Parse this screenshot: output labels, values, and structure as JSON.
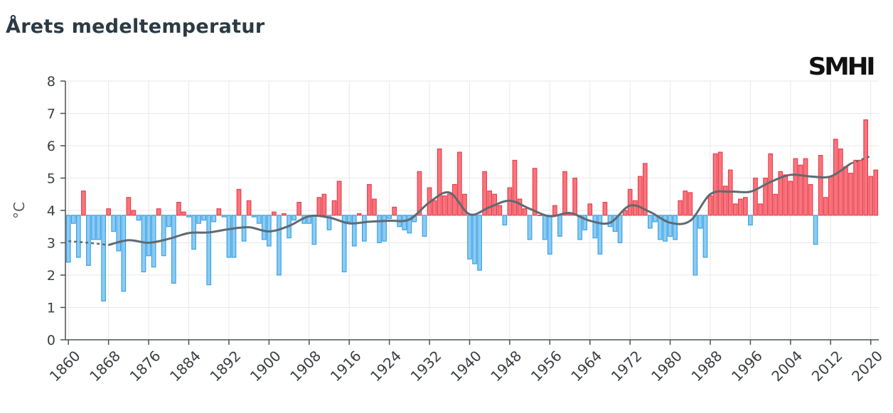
{
  "title": "Årets medeltemperatur",
  "logo_text": "SMHI",
  "colors": {
    "warm_fill": "#f9757e",
    "warm_stroke": "#e8404e",
    "cold_fill": "#8ccbf2",
    "cold_stroke": "#3aa2e6",
    "trend": "#5f6a70",
    "grid": "#e9e9e9"
  },
  "chart_data": {
    "type": "bar",
    "baseline": 3.85,
    "ylabel": "°C",
    "ylim": [
      0,
      8
    ],
    "yticks": [
      "0",
      "1",
      "2",
      "3",
      "4",
      "5",
      "6",
      "7",
      "8"
    ],
    "xlim": [
      1859.4,
      2021.6
    ],
    "xticks": [
      "1860",
      "1868",
      "1876",
      "1884",
      "1892",
      "1900",
      "1908",
      "1916",
      "1924",
      "1932",
      "1940",
      "1948",
      "1956",
      "1964",
      "1972",
      "1980",
      "1988",
      "1996",
      "2004",
      "2012",
      "2020"
    ],
    "grid": true,
    "x": [
      1860,
      1861,
      1862,
      1863,
      1864,
      1865,
      1866,
      1867,
      1868,
      1869,
      1870,
      1871,
      1872,
      1873,
      1874,
      1875,
      1876,
      1877,
      1878,
      1879,
      1880,
      1881,
      1882,
      1883,
      1884,
      1885,
      1886,
      1887,
      1888,
      1889,
      1890,
      1891,
      1892,
      1893,
      1894,
      1895,
      1896,
      1897,
      1898,
      1899,
      1900,
      1901,
      1902,
      1903,
      1904,
      1905,
      1906,
      1907,
      1908,
      1909,
      1910,
      1911,
      1912,
      1913,
      1914,
      1915,
      1916,
      1917,
      1918,
      1919,
      1920,
      1921,
      1922,
      1923,
      1924,
      1925,
      1926,
      1927,
      1928,
      1929,
      1930,
      1931,
      1932,
      1933,
      1934,
      1935,
      1936,
      1937,
      1938,
      1939,
      1940,
      1941,
      1942,
      1943,
      1944,
      1945,
      1946,
      1947,
      1948,
      1949,
      1950,
      1951,
      1952,
      1953,
      1954,
      1955,
      1956,
      1957,
      1958,
      1959,
      1960,
      1961,
      1962,
      1963,
      1964,
      1965,
      1966,
      1967,
      1968,
      1969,
      1970,
      1971,
      1972,
      1973,
      1974,
      1975,
      1976,
      1977,
      1978,
      1979,
      1980,
      1981,
      1982,
      1983,
      1984,
      1985,
      1986,
      1987,
      1988,
      1989,
      1990,
      1991,
      1992,
      1993,
      1994,
      1995,
      1996,
      1997,
      1998,
      1999,
      2000,
      2001,
      2002,
      2003,
      2004,
      2005,
      2006,
      2007,
      2008,
      2009,
      2010,
      2011,
      2012,
      2013,
      2014,
      2015,
      2016,
      2017,
      2018,
      2019,
      2020,
      2021
    ],
    "values": [
      2.4,
      3.6,
      2.55,
      4.6,
      2.3,
      3.1,
      3.1,
      1.2,
      4.05,
      3.35,
      2.75,
      1.5,
      4.4,
      4.0,
      3.7,
      2.1,
      2.6,
      2.25,
      4.05,
      2.6,
      3.5,
      1.75,
      4.25,
      3.95,
      3.8,
      2.8,
      3.6,
      3.7,
      1.7,
      3.65,
      4.05,
      3.8,
      2.55,
      2.55,
      4.65,
      3.05,
      4.3,
      3.8,
      3.6,
      3.1,
      2.9,
      3.95,
      2.0,
      3.9,
      3.15,
      3.7,
      4.25,
      3.6,
      3.6,
      2.95,
      4.4,
      4.5,
      3.4,
      4.3,
      4.9,
      2.1,
      3.65,
      2.9,
      3.9,
      3.05,
      4.8,
      4.35,
      3.0,
      3.05,
      3.75,
      4.1,
      3.5,
      3.4,
      3.3,
      3.65,
      5.2,
      3.2,
      4.7,
      4.3,
      5.9,
      4.45,
      4.5,
      4.8,
      5.8,
      4.5,
      2.5,
      2.35,
      2.15,
      5.2,
      4.6,
      4.5,
      4.15,
      3.55,
      4.7,
      5.55,
      4.35,
      4.05,
      3.1,
      5.3,
      3.85,
      3.1,
      2.65,
      4.15,
      3.2,
      5.2,
      3.9,
      5.0,
      3.1,
      3.4,
      4.2,
      3.15,
      2.65,
      4.25,
      3.5,
      3.35,
      3.0,
      4.0,
      4.65,
      4.3,
      5.05,
      5.45,
      3.45,
      3.65,
      3.1,
      3.05,
      3.2,
      3.1,
      4.3,
      4.6,
      4.55,
      2.0,
      3.45,
      2.55,
      4.45,
      5.75,
      5.8,
      4.75,
      5.25,
      4.2,
      4.35,
      4.4,
      3.55,
      5.0,
      4.2,
      5.0,
      5.75,
      4.5,
      5.2,
      5.1,
      4.9,
      5.6,
      5.4,
      5.6,
      4.8,
      2.95,
      5.7,
      4.4,
      5.05,
      6.2,
      5.9,
      5.35,
      5.15,
      5.55,
      5.55,
      6.8,
      5.05,
      5.25
    ],
    "trend": {
      "x": [
        1860,
        1864,
        1868,
        1872,
        1876,
        1880,
        1884,
        1888,
        1892,
        1896,
        1900,
        1904,
        1908,
        1912,
        1916,
        1920,
        1924,
        1928,
        1932,
        1936,
        1940,
        1944,
        1948,
        1952,
        1956,
        1960,
        1964,
        1968,
        1972,
        1976,
        1980,
        1984,
        1988,
        1992,
        1996,
        2000,
        2004,
        2008,
        2012,
        2016,
        2020
      ],
      "values": [
        3.05,
        3.0,
        2.93,
        3.08,
        3.0,
        3.12,
        3.3,
        3.32,
        3.42,
        3.48,
        3.35,
        3.52,
        3.82,
        3.78,
        3.6,
        3.65,
        3.68,
        3.72,
        4.25,
        4.55,
        3.88,
        4.1,
        4.3,
        4.05,
        3.82,
        3.92,
        3.68,
        3.62,
        4.15,
        3.95,
        3.62,
        3.68,
        4.5,
        4.58,
        4.58,
        4.88,
        5.1,
        5.05,
        5.05,
        5.45,
        5.68
      ]
    }
  }
}
